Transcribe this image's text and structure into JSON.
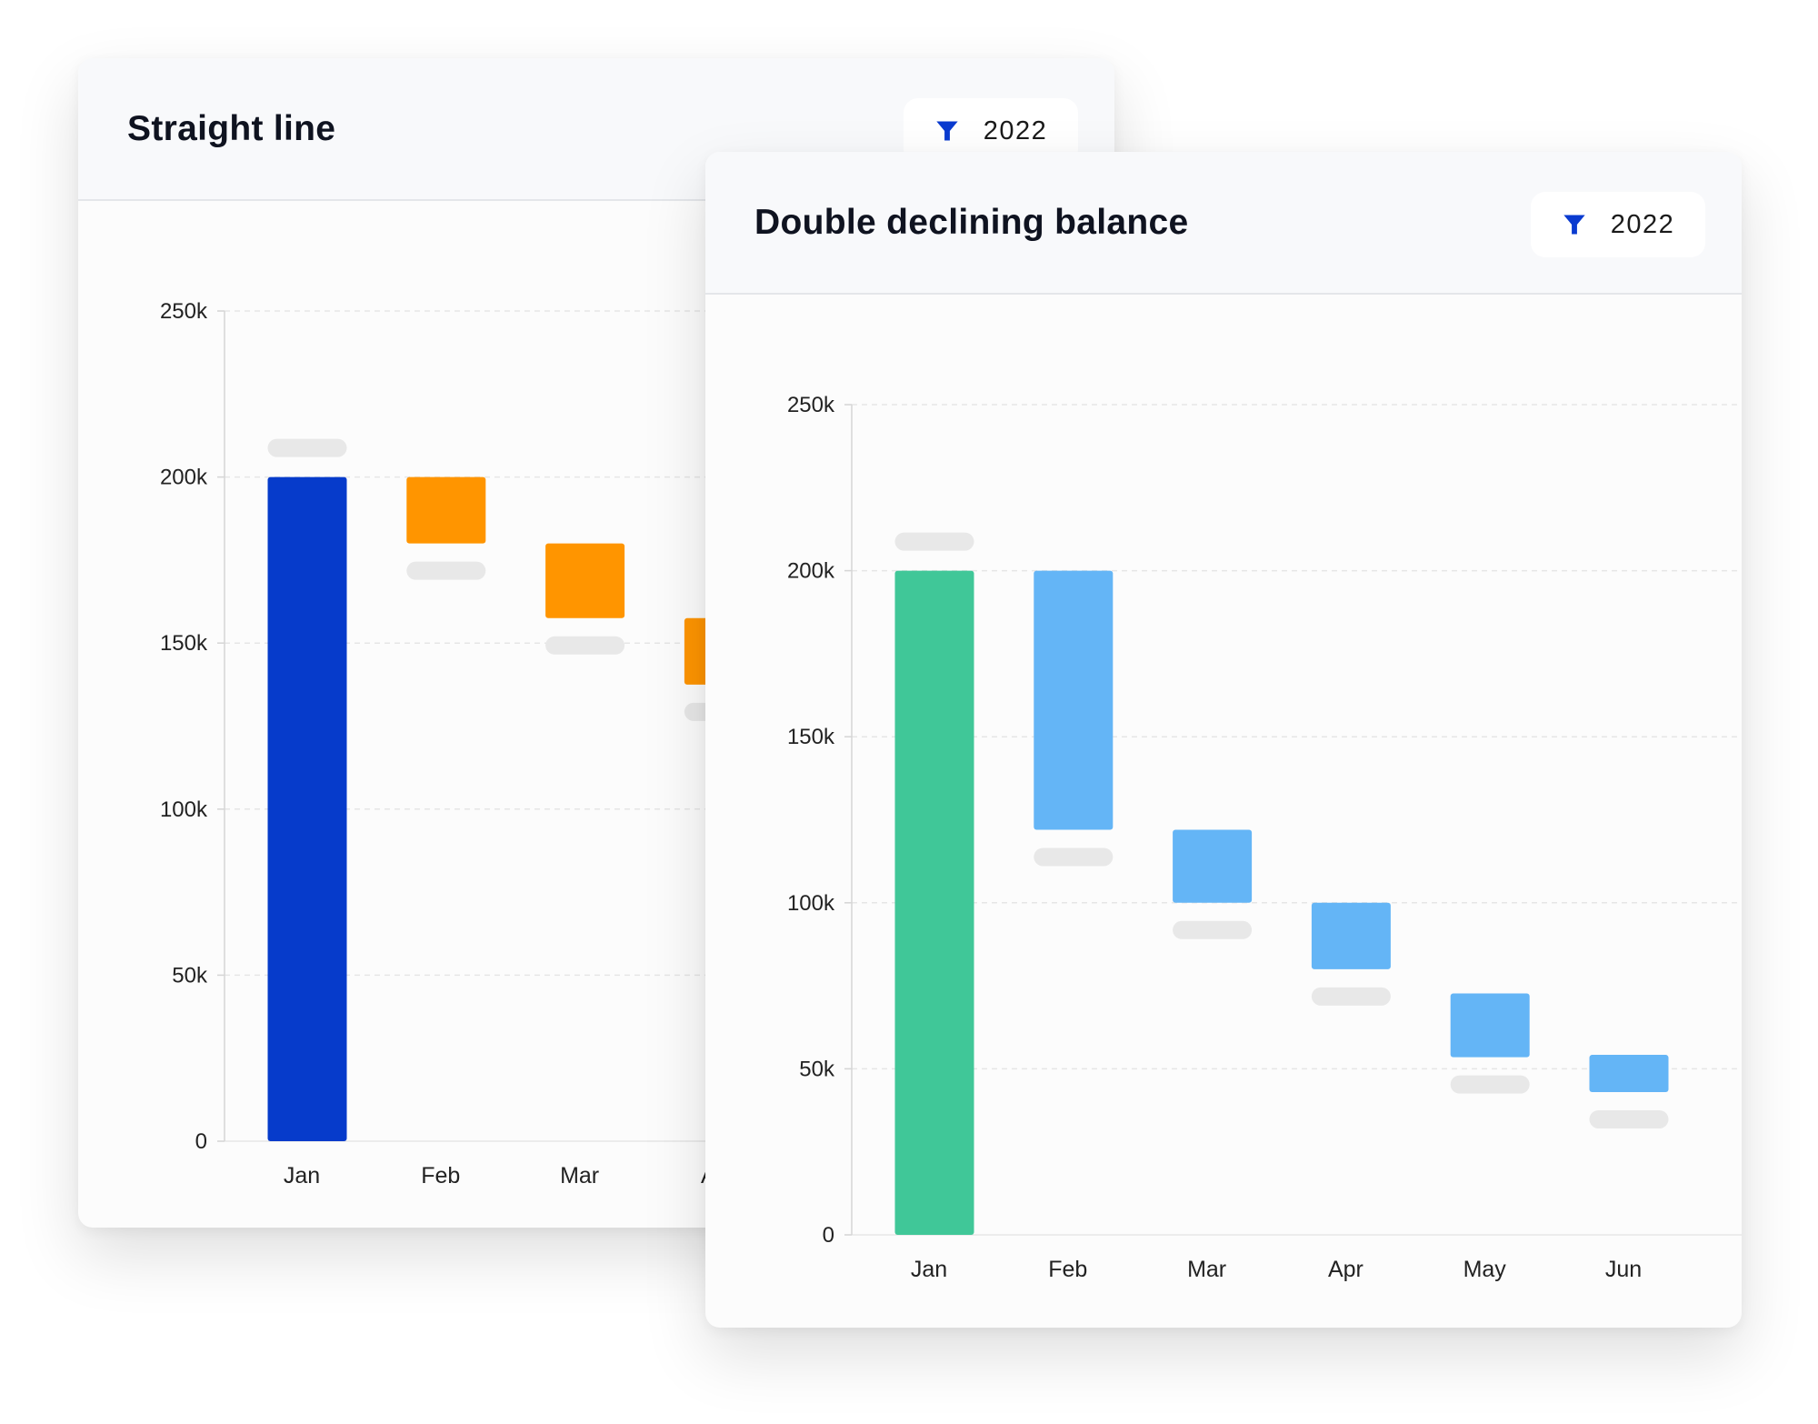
{
  "colors": {
    "straight_line_start": "#063BCB",
    "straight_line_step": "#FF9500",
    "ddb_start": "#40C798",
    "ddb_step": "#64B5F6",
    "placeholder": "#E8E8E8"
  },
  "chart_data": [
    {
      "type": "bar",
      "subtype": "waterfall",
      "title": "Straight line",
      "filter": {
        "icon": "filter-icon",
        "label": "2022"
      },
      "categories": [
        "Jan",
        "Feb",
        "Mar",
        "Apr"
      ],
      "ranges": [
        [
          0,
          200000
        ],
        [
          180000,
          200000
        ],
        [
          157500,
          180000
        ],
        [
          137500,
          157500
        ]
      ],
      "yticks": [
        "0",
        "50k",
        "100k",
        "150k",
        "200k",
        "250k"
      ],
      "ylim": [
        0,
        250000
      ],
      "grid": true
    },
    {
      "type": "bar",
      "subtype": "waterfall",
      "title": "Double declining balance",
      "filter": {
        "icon": "filter-icon",
        "label": "2022"
      },
      "categories": [
        "Jan",
        "Feb",
        "Mar",
        "Apr",
        "May",
        "Jun"
      ],
      "ranges": [
        [
          0,
          200000
        ],
        [
          122000,
          200000
        ],
        [
          100000,
          122000
        ],
        [
          80000,
          100000
        ],
        [
          53500,
          72700
        ],
        [
          43000,
          54200
        ]
      ],
      "yticks": [
        "0",
        "50k",
        "100k",
        "150k",
        "200k",
        "250k"
      ],
      "ylim": [
        0,
        250000
      ],
      "grid": true
    }
  ]
}
